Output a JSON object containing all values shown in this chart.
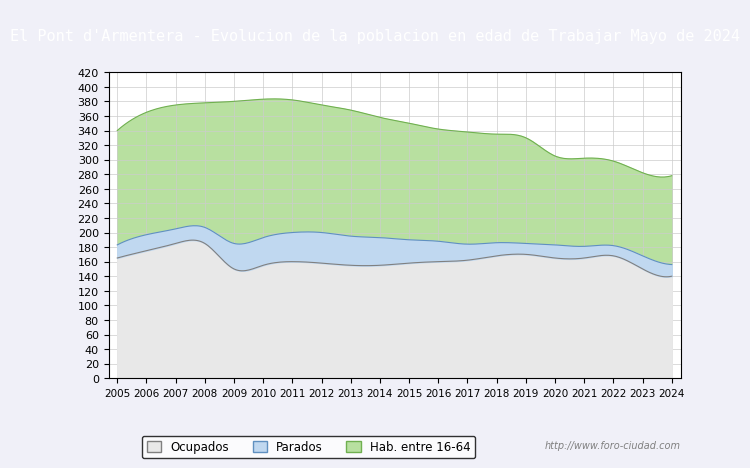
{
  "title": "El Pont d'Armentera - Evolucion de la poblacion en edad de Trabajar Mayo de 2024",
  "title_bg": "#4472c4",
  "title_color": "white",
  "title_fontsize": 11,
  "ylabel": "",
  "xlabel": "",
  "ylim": [
    0,
    420
  ],
  "yticks": [
    0,
    20,
    40,
    60,
    80,
    100,
    120,
    140,
    160,
    180,
    200,
    220,
    240,
    260,
    280,
    300,
    320,
    340,
    360,
    380,
    400,
    420
  ],
  "years": [
    2005,
    2006,
    2007,
    2008,
    2009,
    2010,
    2011,
    2012,
    2013,
    2014,
    2015,
    2016,
    2017,
    2018,
    2019,
    2020,
    2021,
    2022,
    2023,
    2024
  ],
  "hab": [
    340,
    365,
    375,
    378,
    380,
    383,
    382,
    375,
    368,
    358,
    350,
    342,
    338,
    335,
    330,
    305,
    302,
    298,
    282,
    278
  ],
  "ocupados": [
    165,
    175,
    185,
    185,
    150,
    155,
    160,
    158,
    155,
    155,
    158,
    160,
    162,
    168,
    170,
    165,
    165,
    168,
    150,
    140
  ],
  "parados": [
    18,
    22,
    20,
    22,
    35,
    38,
    40,
    42,
    40,
    38,
    32,
    28,
    22,
    18,
    15,
    18,
    16,
    14,
    18,
    16
  ],
  "hab_color": "#b8e0a0",
  "hab_line_color": "#70b050",
  "ocupados_color": "#e8e8e8",
  "ocupados_line_color": "#808080",
  "parados_color": "#c0d8f0",
  "parados_line_color": "#6090c0",
  "legend_labels": [
    "Ocupados",
    "Parados",
    "Hab. entre 16-64"
  ],
  "watermark": "http://www.foro-ciudad.com",
  "background_color": "#f0f0f8",
  "plot_bg": "white"
}
